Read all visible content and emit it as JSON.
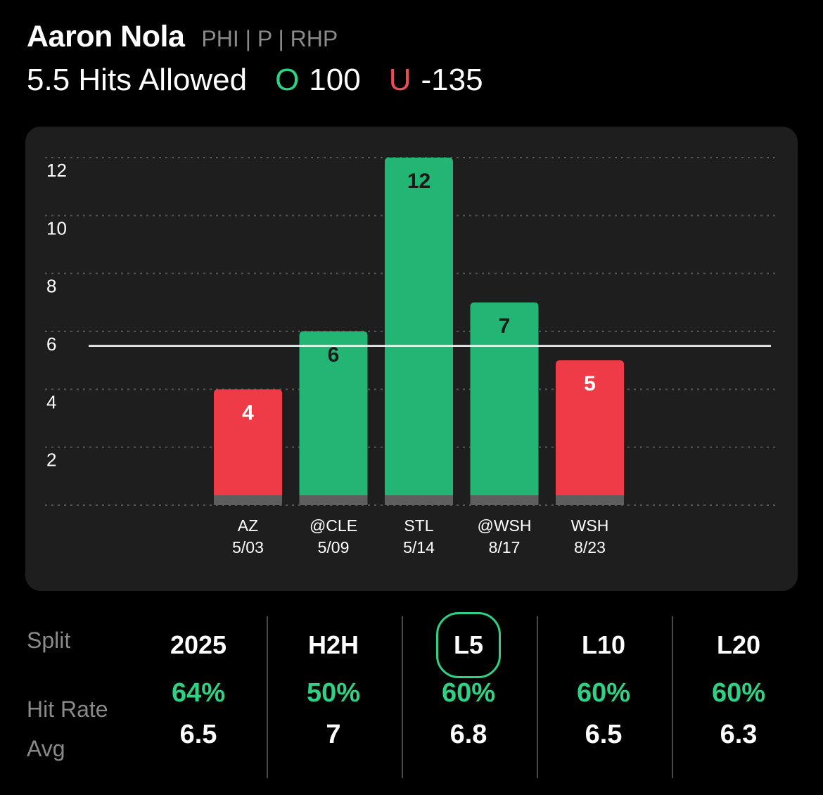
{
  "player": {
    "name": "Aaron Nola",
    "meta": "PHI | P | RHP"
  },
  "line": {
    "prop": "5.5 Hits Allowed",
    "over_symbol": "O",
    "over_odds": "100",
    "under_symbol": "U",
    "under_odds": "-135"
  },
  "chart_data": {
    "type": "bar",
    "categories": [
      "AZ 5/03",
      "@CLE 5/09",
      "STL 5/14",
      "@WSH 8/17",
      "WSH 8/23"
    ],
    "opponents": [
      "AZ",
      "@CLE",
      "STL",
      "@WSH",
      "WSH"
    ],
    "dates": [
      "5/03",
      "5/09",
      "5/14",
      "8/17",
      "8/23"
    ],
    "values": [
      4,
      6,
      12,
      7,
      5
    ],
    "outcomes": [
      "under",
      "over",
      "over",
      "over",
      "under"
    ],
    "line": 5.5,
    "ylim": [
      0,
      12
    ],
    "yticks": [
      2,
      4,
      6,
      8,
      10,
      12
    ],
    "grid": true,
    "colors": {
      "over": "#22b573",
      "under": "#ef3b48",
      "base": "#5e5e5e",
      "line": "#ffffff",
      "grid": "#555555",
      "label_over": "#1a1a1a",
      "label_under": "#ffffff"
    }
  },
  "splits": {
    "row_labels": {
      "split": "Split",
      "hit_rate": "Hit Rate",
      "avg": "Avg"
    },
    "columns": [
      {
        "tab": "2025",
        "hit_rate": "64%",
        "avg": "6.5",
        "active": false
      },
      {
        "tab": "H2H",
        "hit_rate": "50%",
        "avg": "7",
        "active": false
      },
      {
        "tab": "L5",
        "hit_rate": "60%",
        "avg": "6.8",
        "active": true
      },
      {
        "tab": "L10",
        "hit_rate": "60%",
        "avg": "6.5",
        "active": false
      },
      {
        "tab": "L20",
        "hit_rate": "60%",
        "avg": "6.3",
        "active": false
      }
    ]
  }
}
